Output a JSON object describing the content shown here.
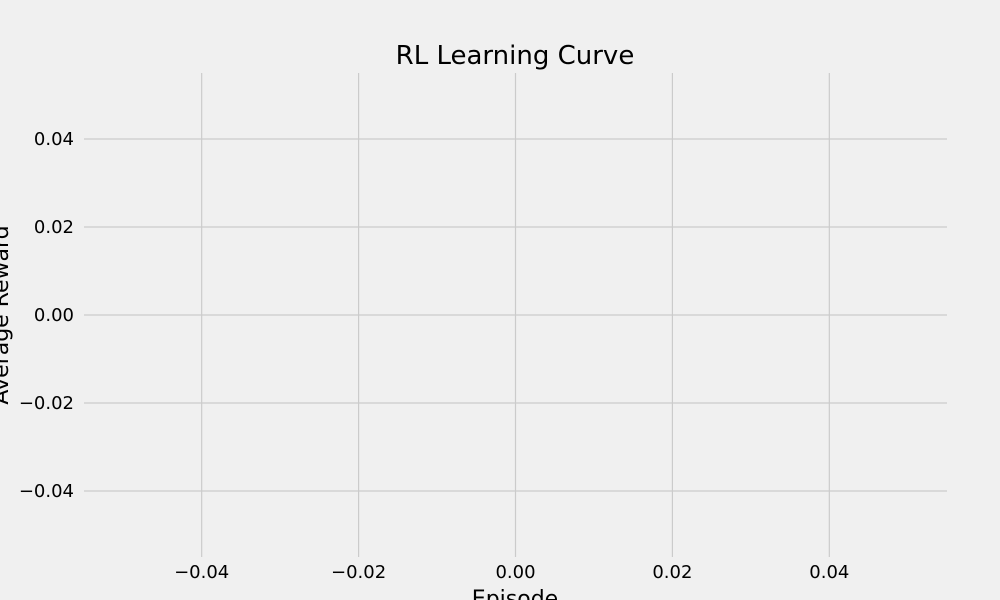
{
  "chart_data": {
    "type": "line",
    "title": "RL Learning Curve",
    "xlabel": "Episode",
    "ylabel": "Average Reward",
    "xlim": [
      -0.055,
      0.055
    ],
    "ylim": [
      -0.055,
      0.055
    ],
    "x_ticks": [
      -0.04,
      -0.02,
      0.0,
      0.02,
      0.04
    ],
    "x_tick_labels": [
      "−0.04",
      "−0.02",
      "0.00",
      "0.02",
      "0.04"
    ],
    "y_ticks": [
      -0.04,
      -0.02,
      0.0,
      0.02,
      0.04
    ],
    "y_tick_labels": [
      "−0.04",
      "−0.02",
      "0.00",
      "0.02",
      "0.04"
    ],
    "grid": true,
    "series": [],
    "colors": {
      "background": "#f0f0f0",
      "grid": "#cbcbcb",
      "text": "#000000"
    }
  }
}
